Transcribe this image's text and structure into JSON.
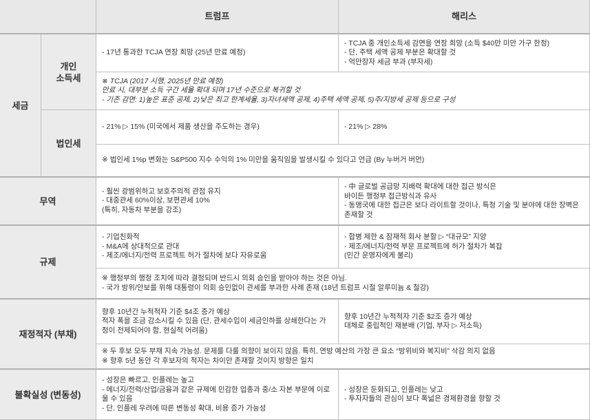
{
  "header": {
    "corner": "",
    "trump": "트럼프",
    "harris": "해리스"
  },
  "tax": {
    "label": "세금",
    "personal": {
      "label": "개인\n소득세",
      "trump": "- 17년 통과한 TCJA 연장 희망 (25년 만료 예정)",
      "harris": "- TCJA 중 개인소득세 감면을 연장 희망 (소득 $40만 미만 가구 한정)\n- 단, 주택 세액 공제 부분은 확대할 것\n- 억만장자 세금 부과 (부자세)",
      "note": "※ TCJA (2017 시행, 2025년 만료 예정)\n만료 시, 대부분 소득 구간 세율 확대 되며 17년 수준으로 복귀할 것\n- 기존 감면: 1)높은 표준 공제, 2)낮은 최고 한계세율, 3)자녀세액 공제, 4)주택 세액 공제, 5)주/지방세 공제 등으로 구성"
    },
    "corporate": {
      "label": "법인세",
      "trump": "- 21% ▷ 15% (미국에서 제품 생산을 주도하는 경우)",
      "harris": "- 21% ▷ 28%",
      "note": "※ 법인세 1%p 변화는 S&P500 지수 수익의 1% 미만을 움직임을 발생시킬 수 있다고 언급 (By 누버거 버먼)"
    }
  },
  "trade": {
    "label": "무역",
    "trump": "- 훨씬 광범위하고 보호주의적 관점 유지\n- 대중관세 60%이상, 보편관세 10%\n(특히, 자동차 부분을 강조)",
    "harris": "- 中 글로벌 공급망 지배력 확대에 대한 접근 방식은\n바이든 행정부 접근방식과 유사\n- 동맹국에 대한 접근은 보다 라이트할 것이나, 특정 기술 및 분야에 대한 장벽은 존재할 것"
  },
  "regulation": {
    "label": "규제",
    "trump": "- 기업친화적\n- M&A에 상대적으로 관대\n- 제조/에너지/전력 프로젝트 허가 절차에 보다 자유로움",
    "harris": "- 합병 제한 & 잠재적 회사 분할 ▷ “대규모” 지양\n- 제조/에너지/전력 부문 프로젝트에 허가 절차가 복잡\n(민간 운영자에게 불리)",
    "note": "※ 행정부의 행정 조치에 따라 결정되며 반드시 의회 승인을 받아야 하는 것은 아님.\n- 국가 방위/안보를 위해 대통령이 의회 승인없이 관세를 부과한 사례 존재 (18년 트럼프 시절 알루미늄 & 철강)"
  },
  "deficit": {
    "label": "재정적자 (부채)",
    "trump": "향후 10년간 누적적자 기준 $4조 증가 예상\n적자 폭을 조금 감소시킬 수 있음 (단, 관세수입이 세금인하를 상쇄한다는 가정이 전제되어야 함, 현실적 어려움)",
    "harris": "향후 10년간 누적적자 기준 $2조 증가 예상\n대체로 중립적인 재분배 (기업, 부자 ▷ 저소득)",
    "note": "※ 두 후보 모두 부채 지속 가능성. 문제를 다룰 의향이 보이지 않음. 특히, 연방 예산의 가장 큰 요소 “방위비와 복지비” 삭감 의지 없음\n※ 향후 5년 동안 각 후보자의 적자는 차이만 존재할 것이지 방향은 일치"
  },
  "uncertainty": {
    "label": "불확실성 (변동성)",
    "trump": "- 성장은 빠르고, 인플레는 높고\n- 에너지/전력/산업/금융과 같은 규제에 민감한 업종과 중/소 자본 부문에 이로울 수 있음\n- 단, 인플레 우려에 따른 변동성 확대, 비용 증가 가능성",
    "harris": "- 성장은 둔화되고, 인플레는 낮고\n- 투자자들의 관심이 보다 폭넓은 경제환경을 향할 것"
  }
}
